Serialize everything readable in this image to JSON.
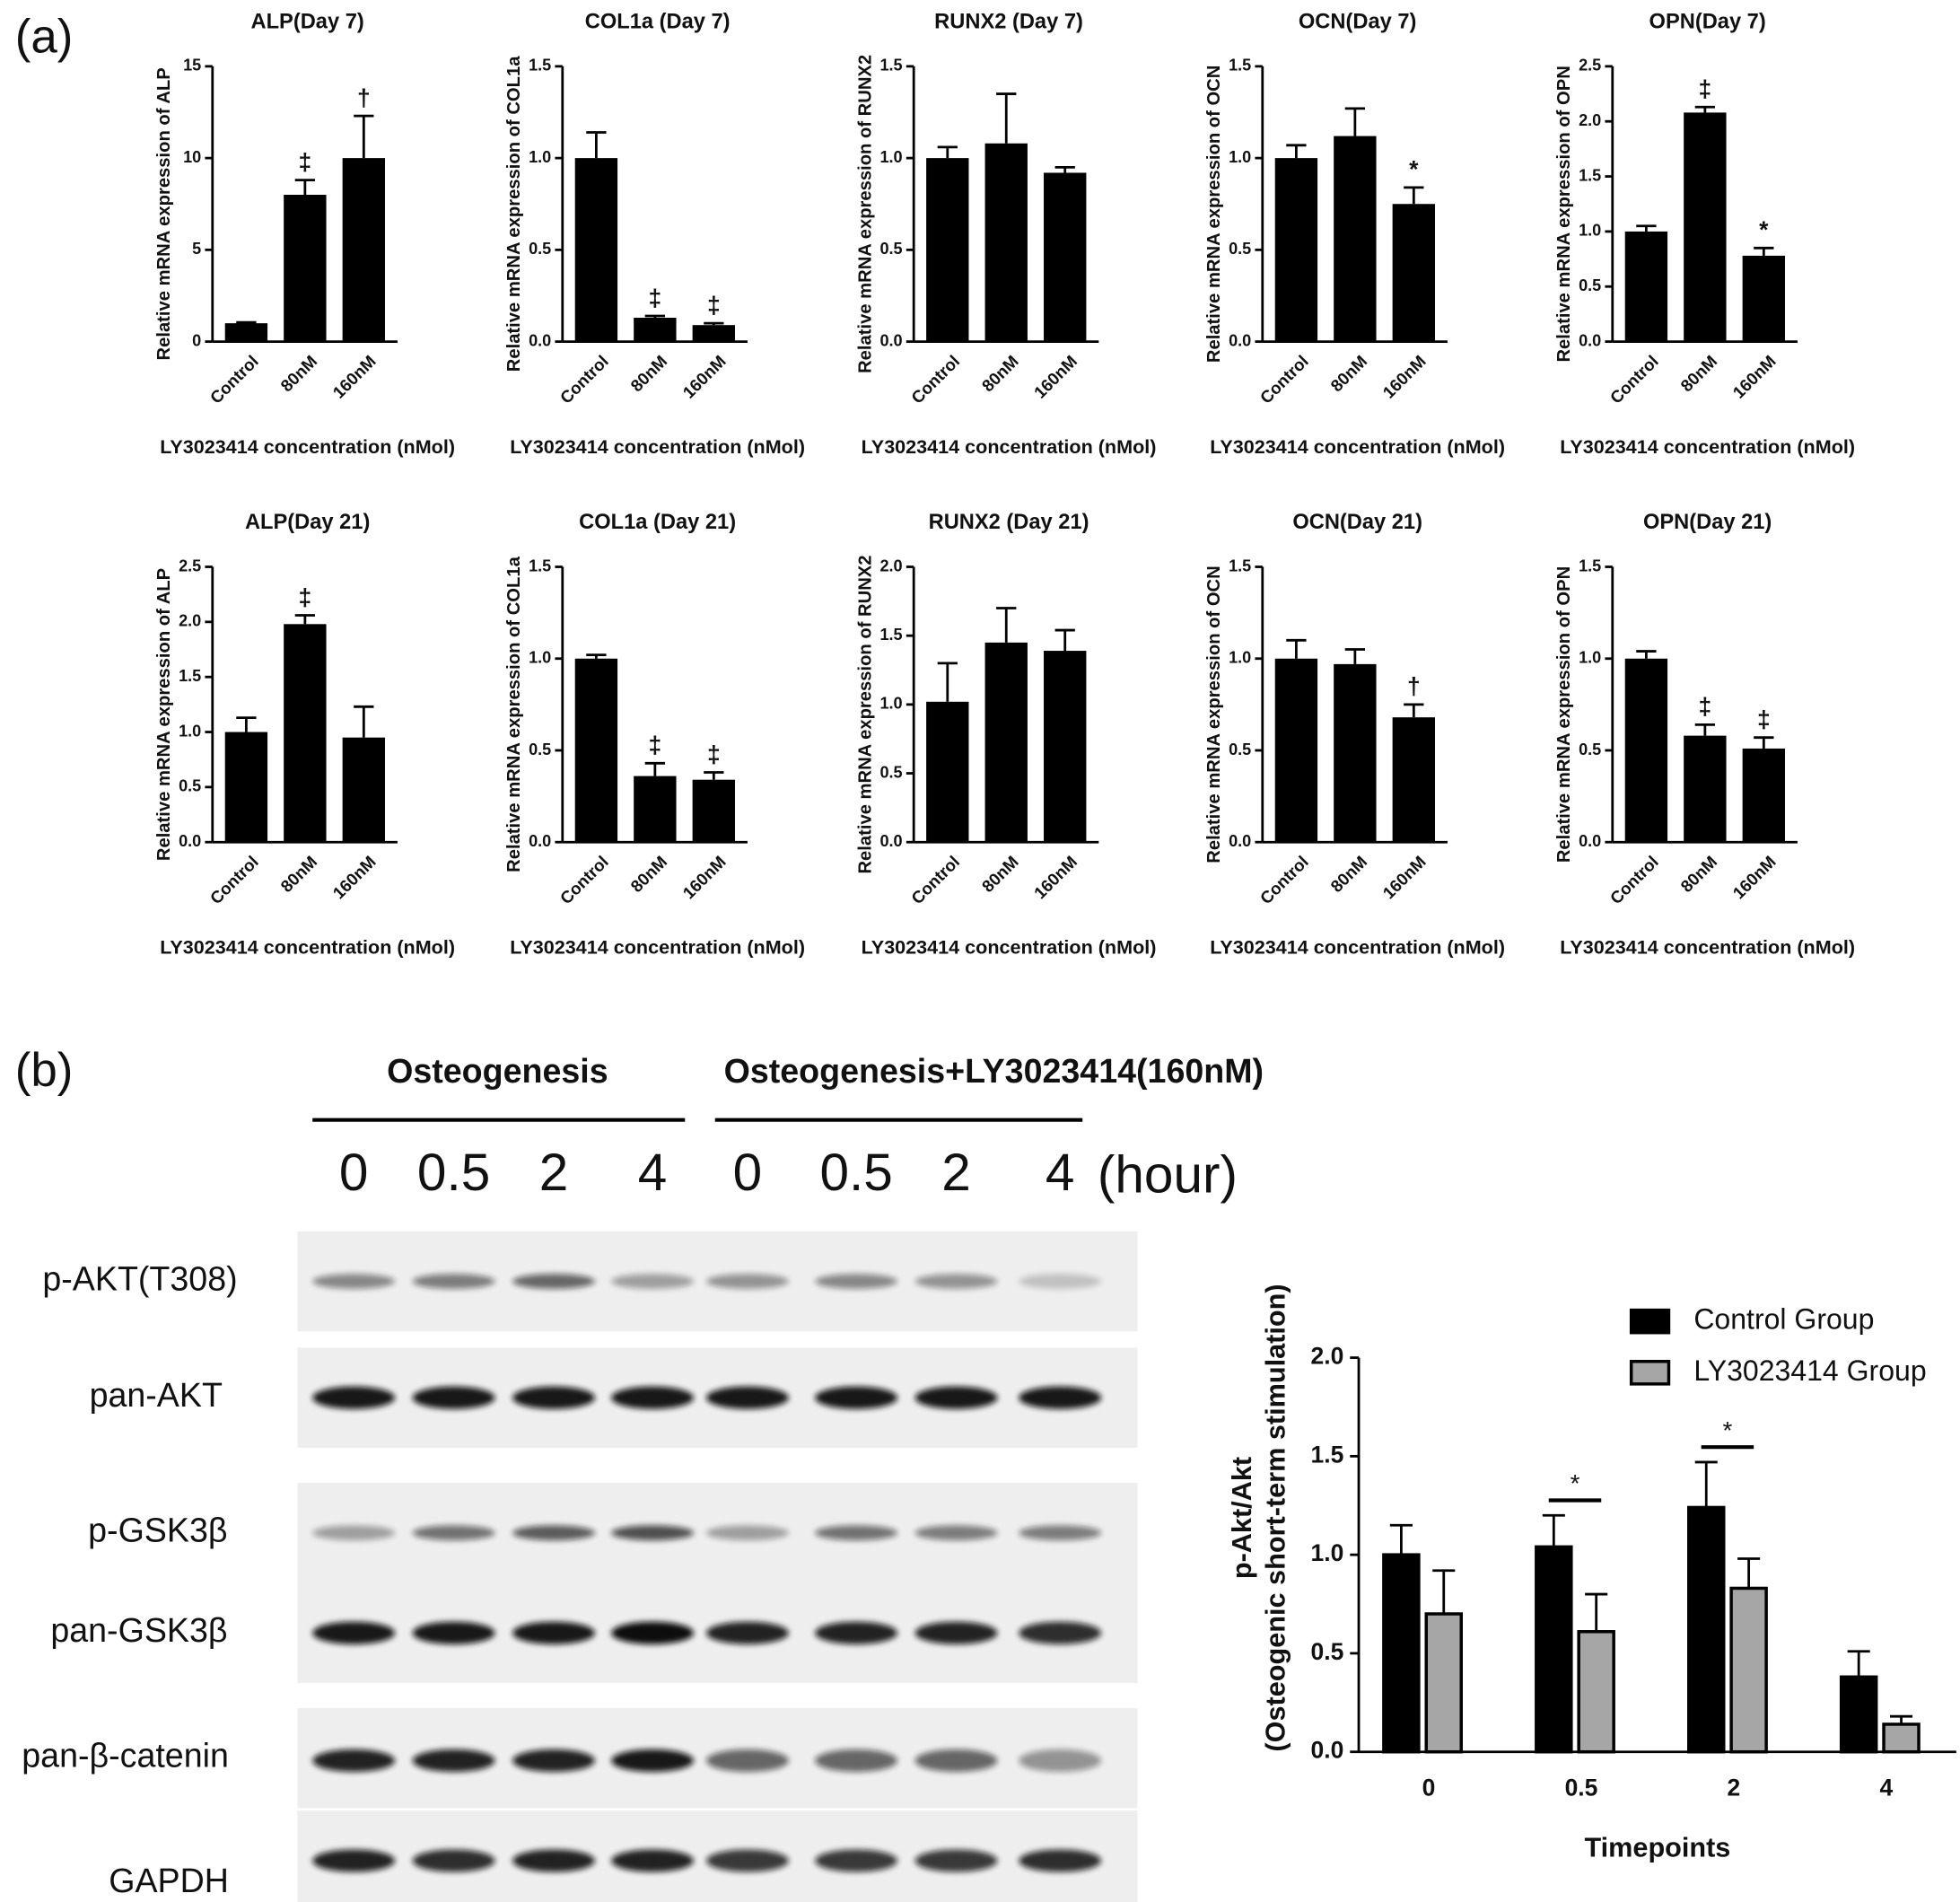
{
  "panel_labels": [
    "(a)",
    "(b)"
  ],
  "blot": {
    "groups": [
      "Osteogenesis",
      "Osteogenesis+LY3023414(160nM)"
    ],
    "lanes": [
      "0",
      "0.5",
      "2",
      "4",
      "0",
      "0.5",
      "2",
      "4"
    ],
    "lane_unit": "(hour)",
    "rows": [
      "p-AKT(T308)",
      "pan-AKT",
      "p-GSK3β",
      "pan-GSK3β",
      "pan-β-catenin",
      "GAPDH"
    ]
  },
  "chart_data": [
    {
      "type": "bar",
      "title": "ALP(Day 7)",
      "ylabel": "Relative mRNA expression of ALP",
      "xlabel": "LY3023414 concentration (nMol)",
      "categories": [
        "Control",
        "80nM",
        "160nM"
      ],
      "values": [
        1.0,
        8.0,
        10.0
      ],
      "errors": [
        0.05,
        0.8,
        2.3
      ],
      "annotations": [
        null,
        "‡",
        "†"
      ],
      "color": "#000000",
      "ylim": [
        0,
        15
      ],
      "yticks": [
        0,
        5,
        10,
        15
      ]
    },
    {
      "type": "bar",
      "title": "COL1a (Day 7)",
      "ylabel": "Relative mRNA expression of COL1a",
      "xlabel": "LY3023414 concentration (nMol)",
      "categories": [
        "Control",
        "80nM",
        "160nM"
      ],
      "values": [
        1.0,
        0.13,
        0.09
      ],
      "errors": [
        0.14,
        0.01,
        0.01
      ],
      "annotations": [
        null,
        "‡",
        "‡"
      ],
      "color": "#000000",
      "ylim": [
        0,
        1.5
      ],
      "yticks": [
        {
          "value": 0,
          "label": "0.0"
        },
        0.5,
        {
          "value": 1,
          "label": "1.0"
        },
        1.5
      ]
    },
    {
      "type": "bar",
      "title": "RUNX2 (Day 7)",
      "ylabel": "Relative mRNA expression of RUNX2",
      "xlabel": "LY3023414 concentration (nMol)",
      "categories": [
        "Control",
        "80nM",
        "160nM"
      ],
      "values": [
        1.0,
        1.08,
        0.92
      ],
      "errors": [
        0.06,
        0.27,
        0.03
      ],
      "annotations": [
        null,
        null,
        null
      ],
      "color": "#000000",
      "ylim": [
        0,
        1.5
      ],
      "yticks": [
        {
          "value": 0,
          "label": "0.0"
        },
        0.5,
        {
          "value": 1,
          "label": "1.0"
        },
        1.5
      ]
    },
    {
      "type": "bar",
      "title": "OCN(Day 7)",
      "ylabel": "Relative mRNA expression of OCN",
      "xlabel": "LY3023414 concentration (nMol)",
      "categories": [
        "Control",
        "80nM",
        "160nM"
      ],
      "values": [
        1.0,
        1.12,
        0.75
      ],
      "errors": [
        0.07,
        0.15,
        0.09
      ],
      "annotations": [
        null,
        null,
        "*"
      ],
      "color": "#000000",
      "ylim": [
        0,
        1.5
      ],
      "yticks": [
        {
          "value": 0,
          "label": "0.0"
        },
        0.5,
        {
          "value": 1,
          "label": "1.0"
        },
        1.5
      ]
    },
    {
      "type": "bar",
      "title": "OPN(Day 7)",
      "ylabel": "Relative mRNA expression of OPN",
      "xlabel": "LY3023414 concentration (nMol)",
      "categories": [
        "Control",
        "80nM",
        "160nM"
      ],
      "values": [
        1.0,
        2.08,
        0.78
      ],
      "errors": [
        0.05,
        0.05,
        0.07
      ],
      "annotations": [
        null,
        "‡",
        "*"
      ],
      "color": "#000000",
      "ylim": [
        0,
        2.5
      ],
      "yticks": [
        {
          "value": 0,
          "label": "0.0"
        },
        0.5,
        {
          "value": 1,
          "label": "1.0"
        },
        1.5,
        {
          "value": 2,
          "label": "2.0"
        },
        2.5
      ]
    },
    {
      "type": "bar",
      "title": "ALP(Day 21)",
      "ylabel": "Relative mRNA expression of ALP",
      "xlabel": "LY3023414 concentration (nMol)",
      "categories": [
        "Control",
        "80nM",
        "160nM"
      ],
      "values": [
        1.0,
        1.98,
        0.95
      ],
      "errors": [
        0.13,
        0.08,
        0.28
      ],
      "annotations": [
        null,
        "‡",
        null
      ],
      "color": "#000000",
      "ylim": [
        0,
        2.5
      ],
      "yticks": [
        {
          "value": 0,
          "label": "0.0"
        },
        0.5,
        {
          "value": 1,
          "label": "1.0"
        },
        1.5,
        {
          "value": 2,
          "label": "2.0"
        },
        2.5
      ]
    },
    {
      "type": "bar",
      "title": "COL1a (Day 21)",
      "ylabel": "Relative mRNA expression of COL1a",
      "xlabel": "LY3023414 concentration (nMol)",
      "categories": [
        "Control",
        "80nM",
        "160nM"
      ],
      "values": [
        1.0,
        0.36,
        0.34
      ],
      "errors": [
        0.02,
        0.07,
        0.04
      ],
      "annotations": [
        null,
        "‡",
        "‡"
      ],
      "color": "#000000",
      "ylim": [
        0,
        1.5
      ],
      "yticks": [
        {
          "value": 0,
          "label": "0.0"
        },
        0.5,
        {
          "value": 1,
          "label": "1.0"
        },
        1.5
      ]
    },
    {
      "type": "bar",
      "title": "RUNX2 (Day 21)",
      "ylabel": "Relative mRNA expression of RUNX2",
      "xlabel": "LY3023414 concentration (nMol)",
      "categories": [
        "Control",
        "80nM",
        "160nM"
      ],
      "values": [
        1.02,
        1.45,
        1.39
      ],
      "errors": [
        0.28,
        0.25,
        0.15
      ],
      "annotations": [
        null,
        null,
        null
      ],
      "color": "#000000",
      "ylim": [
        0,
        2
      ],
      "yticks": [
        {
          "value": 0,
          "label": "0.0"
        },
        0.5,
        {
          "value": 1,
          "label": "1.0"
        },
        1.5,
        {
          "value": 2,
          "label": "2.0"
        }
      ]
    },
    {
      "type": "bar",
      "title": "OCN(Day 21)",
      "ylabel": "Relative mRNA expression of OCN",
      "xlabel": "LY3023414 concentration (nMol)",
      "categories": [
        "Control",
        "80nM",
        "160nM"
      ],
      "values": [
        1.0,
        0.97,
        0.68
      ],
      "errors": [
        0.1,
        0.08,
        0.07
      ],
      "annotations": [
        null,
        null,
        "†"
      ],
      "color": "#000000",
      "ylim": [
        0,
        1.5
      ],
      "yticks": [
        {
          "value": 0,
          "label": "0.0"
        },
        0.5,
        {
          "value": 1,
          "label": "1.0"
        },
        1.5
      ]
    },
    {
      "type": "bar",
      "title": "OPN(Day 21)",
      "ylabel": "Relative mRNA expression of OPN",
      "xlabel": "LY3023414 concentration (nMol)",
      "categories": [
        "Control",
        "80nM",
        "160nM"
      ],
      "values": [
        1.0,
        0.58,
        0.51
      ],
      "errors": [
        0.04,
        0.06,
        0.06
      ],
      "annotations": [
        null,
        "‡",
        "‡"
      ],
      "color": "#000000",
      "ylim": [
        0,
        1.5
      ],
      "yticks": [
        {
          "value": 0,
          "label": "0.0"
        },
        0.5,
        {
          "value": 1,
          "label": "1.0"
        },
        1.5
      ]
    },
    {
      "type": "bar",
      "ylabel": [
        "p-Akt/Akt",
        "(Osteogenic short-term stimulation)"
      ],
      "xlabel": "Timepoints",
      "categories": [
        "0",
        "0.5",
        "2",
        "4"
      ],
      "series": [
        {
          "name": "Control Group",
          "color": "#000000",
          "values": [
            1.0,
            1.04,
            1.24,
            0.38
          ],
          "errors": [
            0.15,
            0.16,
            0.23,
            0.13
          ]
        },
        {
          "name": "LY3023414 Group",
          "color": "#a6a6a6",
          "values": [
            0.7,
            0.61,
            0.83,
            0.14
          ],
          "errors": [
            0.22,
            0.19,
            0.15,
            0.04
          ]
        }
      ],
      "annotations": [
        null,
        "*",
        "*",
        null
      ],
      "legend": "top-right",
      "ylim": [
        0,
        2
      ],
      "yticks": [
        {
          "value": 0,
          "label": "0.0"
        },
        0.5,
        {
          "value": 1,
          "label": "1.0"
        },
        1.5,
        {
          "value": 2,
          "label": "2.0"
        }
      ]
    }
  ]
}
